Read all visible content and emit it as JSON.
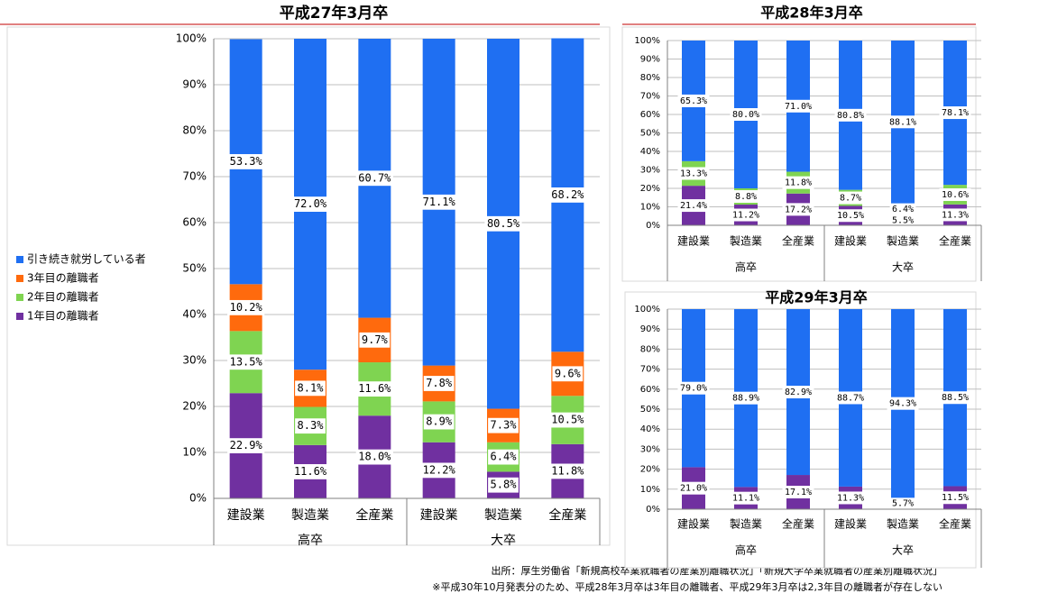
{
  "chart_data": [
    {
      "type": "bar",
      "stacked": true,
      "title": "平成27年3月卒",
      "categories": [
        "建設業",
        "製造業",
        "全産業",
        "建設業",
        "製造業",
        "全産業"
      ],
      "groups": [
        "高卒",
        "大卒"
      ],
      "series": [
        {
          "name": "1年目の離職者",
          "color": "#7030a0",
          "values": [
            22.9,
            11.6,
            18.0,
            12.2,
            5.8,
            11.8
          ],
          "value_labels": [
            "22.9%",
            "11.6%",
            "18.0%",
            "12.2%",
            "5.8%",
            "11.8%"
          ]
        },
        {
          "name": "2年目の離職者",
          "color": "#7fd451",
          "values": [
            13.5,
            8.3,
            11.6,
            8.9,
            6.4,
            10.5
          ],
          "value_labels": [
            "13.5%",
            "8.3%",
            "11.6%",
            "8.9%",
            "6.4%",
            "10.5%"
          ]
        },
        {
          "name": "3年目の離職者",
          "color": "#ff6a0d",
          "values": [
            10.2,
            8.1,
            9.7,
            7.8,
            7.3,
            9.6
          ],
          "value_labels": [
            "10.2%",
            "8.1%",
            "9.7%",
            "7.8%",
            "7.3%",
            "9.6%"
          ]
        },
        {
          "name": "引き続き就労している者",
          "color": "#1f6ff2",
          "values": [
            53.3,
            72.0,
            60.7,
            71.1,
            80.5,
            68.2
          ],
          "value_labels": [
            "53.3%",
            "72.0%",
            "60.7%",
            "71.1%",
            "80.5%",
            "68.2%"
          ]
        }
      ],
      "ylim": [
        0,
        100
      ],
      "yticks": [
        {
          "value": 0,
          "label": "0%"
        },
        {
          "value": 10,
          "label": "10%"
        },
        {
          "value": 20,
          "label": "20%"
        },
        {
          "value": 30,
          "label": "30%"
        },
        {
          "value": 40,
          "label": "40%"
        },
        {
          "value": 50,
          "label": "50%"
        },
        {
          "value": 60,
          "label": "60%"
        },
        {
          "value": 70,
          "label": "70%"
        },
        {
          "value": 80,
          "label": "80%"
        },
        {
          "value": 90,
          "label": "90%"
        },
        {
          "value": 100,
          "label": "100%"
        }
      ],
      "grid": true,
      "legend": "left"
    },
    {
      "type": "bar",
      "stacked": true,
      "title": "平成28年3月卒",
      "categories": [
        "建設業",
        "製造業",
        "全産業",
        "建設業",
        "製造業",
        "全産業"
      ],
      "groups": [
        "高卒",
        "大卒"
      ],
      "series": [
        {
          "color": "#7030a0",
          "values": [
            21.4,
            11.2,
            17.2,
            10.5,
            5.5,
            11.3
          ],
          "value_labels": [
            "21.4%",
            "11.2%",
            "17.2%",
            "10.5%",
            "5.5%",
            "11.3%"
          ]
        },
        {
          "color": "#7fd451",
          "values": [
            13.3,
            8.8,
            11.8,
            8.7,
            6.4,
            10.6
          ],
          "value_labels": [
            "13.3%",
            "8.8%",
            "11.8%",
            "8.7%",
            "6.4%",
            "10.6%"
          ]
        },
        {
          "color": "#1f6ff2",
          "values": [
            65.3,
            80.0,
            71.0,
            80.8,
            88.1,
            78.1
          ],
          "value_labels": [
            "65.3%",
            "80.0%",
            "71.0%",
            "80.8%",
            "88.1%",
            "78.1%"
          ]
        }
      ],
      "ylim": [
        0,
        100
      ],
      "yticks": [
        {
          "value": 0,
          "label": "0%"
        },
        {
          "value": 10,
          "label": "10%"
        },
        {
          "value": 20,
          "label": "20%"
        },
        {
          "value": 30,
          "label": "30%"
        },
        {
          "value": 40,
          "label": "40%"
        },
        {
          "value": 50,
          "label": "50%"
        },
        {
          "value": 60,
          "label": "60%"
        },
        {
          "value": 70,
          "label": "70%"
        },
        {
          "value": 80,
          "label": "80%"
        },
        {
          "value": 90,
          "label": "90%"
        },
        {
          "value": 100,
          "label": "100%"
        }
      ],
      "grid": true
    },
    {
      "type": "bar",
      "stacked": true,
      "title": "平成29年3月卒",
      "categories": [
        "建設業",
        "製造業",
        "全産業",
        "建設業",
        "製造業",
        "全産業"
      ],
      "groups": [
        "高卒",
        "大卒"
      ],
      "series": [
        {
          "color": "#7030a0",
          "values": [
            21.0,
            11.1,
            17.1,
            11.3,
            5.7,
            11.5
          ],
          "value_labels": [
            "21.0%",
            "11.1%",
            "17.1%",
            "11.3%",
            "5.7%",
            "11.5%"
          ]
        },
        {
          "color": "#1f6ff2",
          "values": [
            79.0,
            88.9,
            82.9,
            88.7,
            94.3,
            88.5
          ],
          "value_labels": [
            "79.0%",
            "88.9%",
            "82.9%",
            "88.7%",
            "94.3%",
            "88.5%"
          ]
        }
      ],
      "ylim": [
        0,
        100
      ],
      "yticks": [
        {
          "value": 0,
          "label": "0%"
        },
        {
          "value": 10,
          "label": "10%"
        },
        {
          "value": 20,
          "label": "20%"
        },
        {
          "value": 30,
          "label": "30%"
        },
        {
          "value": 40,
          "label": "40%"
        },
        {
          "value": 50,
          "label": "50%"
        },
        {
          "value": 60,
          "label": "60%"
        },
        {
          "value": 70,
          "label": "70%"
        },
        {
          "value": 80,
          "label": "80%"
        },
        {
          "value": 90,
          "label": "90%"
        },
        {
          "value": 100,
          "label": "100%"
        }
      ],
      "grid": true
    }
  ],
  "notes": {
    "source": "出所：厚生労働省「新規高校卒業就職者の産業別離職状況」「新規大学卒業就職者の産業別離職状況」",
    "remark": "※平成30年10月発表分のため、平成28年3月卒は3年目の離職者、平成29年3月卒は2,3年目の離職者が存在しない"
  }
}
